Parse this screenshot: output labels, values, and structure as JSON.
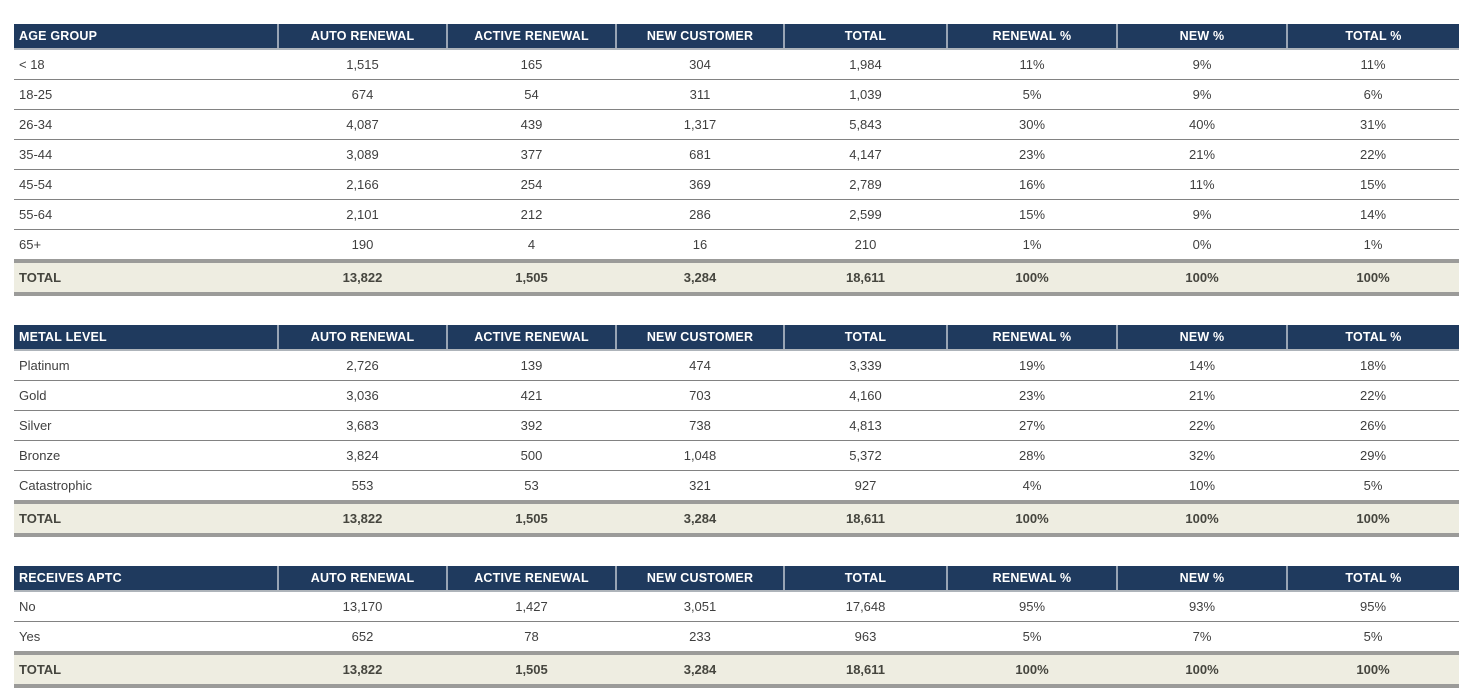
{
  "colors": {
    "header_bg": "#1F3A5E",
    "header_text": "#FFFFFF",
    "header_separator": "#98A4B4",
    "header_bottom_border": "#AEB4BA",
    "body_text": "#3F3F3F",
    "row_border": "#828282",
    "total_row_bg": "#EEEDE1",
    "total_text": "#45453E",
    "thick_border": "#9B9B99",
    "page_bg": "#FFFFFF"
  },
  "tables": [
    {
      "id": "age-group",
      "columns": [
        "AGE GROUP",
        "AUTO RENEWAL",
        "ACTIVE RENEWAL",
        "NEW CUSTOMER",
        "TOTAL",
        "RENEWAL %",
        "NEW %",
        "TOTAL %"
      ],
      "rows": [
        [
          "< 18",
          "1,515",
          "165",
          "304",
          "1,984",
          "11%",
          "9%",
          "11%"
        ],
        [
          "18-25",
          "674",
          "54",
          "311",
          "1,039",
          "5%",
          "9%",
          "6%"
        ],
        [
          "26-34",
          "4,087",
          "439",
          "1,317",
          "5,843",
          "30%",
          "40%",
          "31%"
        ],
        [
          "35-44",
          "3,089",
          "377",
          "681",
          "4,147",
          "23%",
          "21%",
          "22%"
        ],
        [
          "45-54",
          "2,166",
          "254",
          "369",
          "2,789",
          "16%",
          "11%",
          "15%"
        ],
        [
          "55-64",
          "2,101",
          "212",
          "286",
          "2,599",
          "15%",
          "9%",
          "14%"
        ],
        [
          "65+",
          "190",
          "4",
          "16",
          "210",
          "1%",
          "0%",
          "1%"
        ]
      ],
      "total_row": [
        "TOTAL",
        "13,822",
        "1,505",
        "3,284",
        "18,611",
        "100%",
        "100%",
        "100%"
      ]
    },
    {
      "id": "metal-level",
      "columns": [
        "METAL LEVEL",
        "AUTO RENEWAL",
        "ACTIVE RENEWAL",
        "NEW CUSTOMER",
        "TOTAL",
        "RENEWAL %",
        "NEW %",
        "TOTAL %"
      ],
      "rows": [
        [
          "Platinum",
          "2,726",
          "139",
          "474",
          "3,339",
          "19%",
          "14%",
          "18%"
        ],
        [
          "Gold",
          "3,036",
          "421",
          "703",
          "4,160",
          "23%",
          "21%",
          "22%"
        ],
        [
          "Silver",
          "3,683",
          "392",
          "738",
          "4,813",
          "27%",
          "22%",
          "26%"
        ],
        [
          "Bronze",
          "3,824",
          "500",
          "1,048",
          "5,372",
          "28%",
          "32%",
          "29%"
        ],
        [
          "Catastrophic",
          "553",
          "53",
          "321",
          "927",
          "4%",
          "10%",
          "5%"
        ]
      ],
      "total_row": [
        "TOTAL",
        "13,822",
        "1,505",
        "3,284",
        "18,611",
        "100%",
        "100%",
        "100%"
      ]
    },
    {
      "id": "receives-aptc",
      "columns": [
        "RECEIVES APTC",
        "AUTO RENEWAL",
        "ACTIVE RENEWAL",
        "NEW CUSTOMER",
        "TOTAL",
        "RENEWAL %",
        "NEW %",
        "TOTAL %"
      ],
      "rows": [
        [
          "No",
          "13,170",
          "1,427",
          "3,051",
          "17,648",
          "95%",
          "93%",
          "95%"
        ],
        [
          "Yes",
          "652",
          "78",
          "233",
          "963",
          "5%",
          "7%",
          "5%"
        ]
      ],
      "total_row": [
        "TOTAL",
        "13,822",
        "1,505",
        "3,284",
        "18,611",
        "100%",
        "100%",
        "100%"
      ]
    }
  ]
}
